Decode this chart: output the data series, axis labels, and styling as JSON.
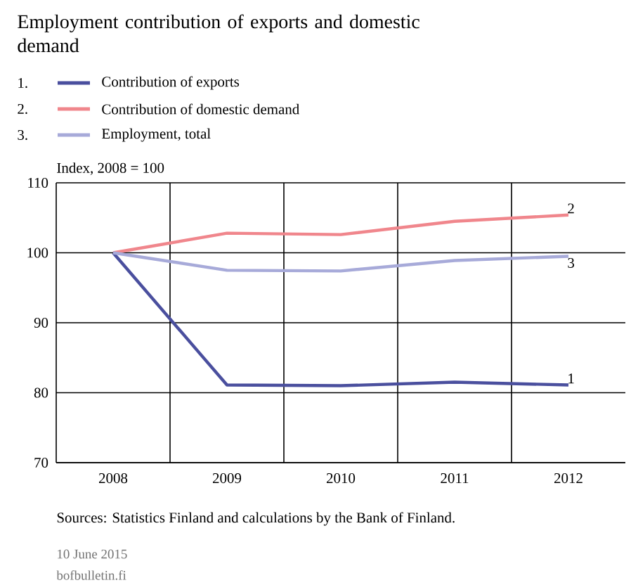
{
  "chart_data": {
    "type": "line",
    "title": "Employment contribution of exports and domestic demand",
    "ylabel": "Index, 2008 = 100",
    "categories": [
      "2008",
      "2009",
      "2010",
      "2011",
      "2012"
    ],
    "series": [
      {
        "name": "Contribution of exports",
        "color": "#4a4f9e",
        "values": [
          100,
          81.1,
          81.0,
          81.5,
          81.1
        ]
      },
      {
        "name": "Contribution of domestic demand",
        "color": "#f0868c",
        "values": [
          100,
          102.8,
          102.6,
          104.5,
          105.4
        ]
      },
      {
        "name": "Employment, total",
        "color": "#a7aad9",
        "values": [
          100,
          97.5,
          97.4,
          98.9,
          99.5
        ]
      }
    ],
    "ylim": [
      70,
      110
    ],
    "yticks": [
      70,
      80,
      90,
      100,
      110
    ],
    "grid": true,
    "legend": "top",
    "annotations": [
      {
        "text": "1",
        "x": "2012",
        "y": 81.1
      },
      {
        "text": "2",
        "x": "2012",
        "y": 105.4
      },
      {
        "text": "3",
        "x": "2012",
        "y": 99.5
      },
      "1.",
      "2.",
      "3.",
      "Sources: Statistics Finland and calculations by the Bank of Finland.",
      "10 June 2015",
      "bofbulletin.fi"
    ]
  }
}
